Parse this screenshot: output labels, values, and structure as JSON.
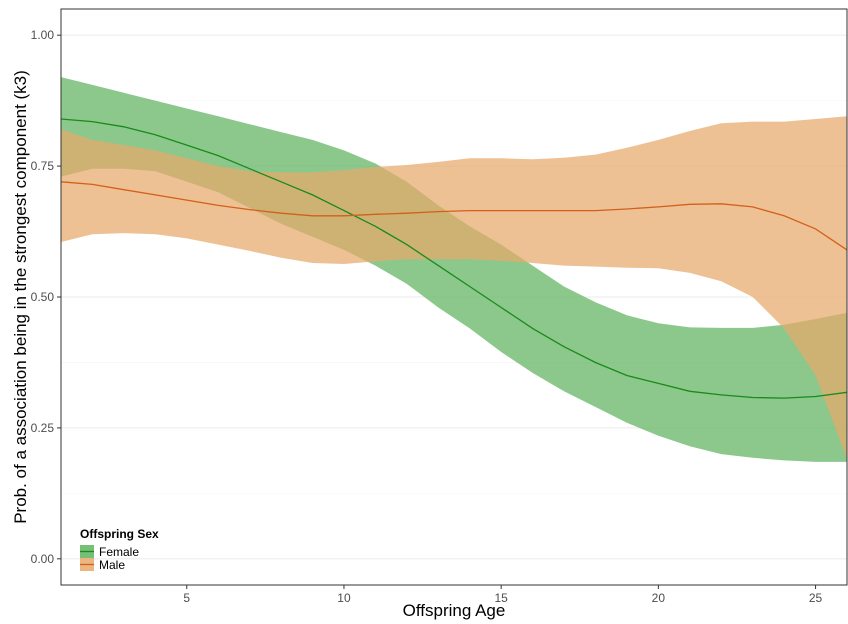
{
  "chart_data": {
    "type": "line",
    "xlabel": "Offspring Age",
    "ylabel": "Prob. of a association being in the strongest component (k3)",
    "xlim": [
      1,
      26
    ],
    "ylim": [
      -0.05,
      1.05
    ],
    "x_ticks": [
      5,
      10,
      15,
      20,
      25
    ],
    "x_tick_labels": [
      "5",
      "10",
      "15",
      "20",
      "25"
    ],
    "y_ticks": [
      0,
      0.25,
      0.5,
      0.75,
      1.0
    ],
    "y_tick_labels": [
      "0.00",
      "0.25",
      "0.50",
      "0.75",
      "1.00"
    ],
    "grid": true,
    "legend": {
      "title": "Offspring Sex",
      "placement": "bottom-left",
      "entries": [
        "Female",
        "Male"
      ]
    },
    "x": [
      1,
      2,
      3,
      4,
      5,
      6,
      7,
      8,
      9,
      10,
      11,
      12,
      13,
      14,
      15,
      16,
      17,
      18,
      19,
      20,
      21,
      22,
      23,
      24,
      25,
      26
    ],
    "series": [
      {
        "name": "Female",
        "color": "#1a8a1a",
        "fill": "#5fb35f",
        "values": [
          0.84,
          0.835,
          0.825,
          0.81,
          0.79,
          0.77,
          0.745,
          0.72,
          0.695,
          0.665,
          0.635,
          0.6,
          0.56,
          0.52,
          0.48,
          0.44,
          0.405,
          0.375,
          0.35,
          0.335,
          0.32,
          0.313,
          0.308,
          0.307,
          0.31,
          0.318
        ],
        "lower": [
          0.73,
          0.745,
          0.745,
          0.74,
          0.72,
          0.7,
          0.67,
          0.64,
          0.615,
          0.59,
          0.56,
          0.525,
          0.48,
          0.44,
          0.395,
          0.355,
          0.32,
          0.29,
          0.26,
          0.235,
          0.215,
          0.2,
          0.193,
          0.188,
          0.185,
          0.185
        ],
        "upper": [
          0.92,
          0.905,
          0.89,
          0.875,
          0.86,
          0.845,
          0.83,
          0.815,
          0.8,
          0.78,
          0.755,
          0.72,
          0.675,
          0.635,
          0.6,
          0.56,
          0.52,
          0.49,
          0.465,
          0.45,
          0.442,
          0.441,
          0.441,
          0.447,
          0.458,
          0.47
        ]
      },
      {
        "name": "Male",
        "color": "#d2601a",
        "fill": "#e8a96b",
        "values": [
          0.72,
          0.715,
          0.705,
          0.695,
          0.685,
          0.675,
          0.667,
          0.66,
          0.655,
          0.655,
          0.658,
          0.66,
          0.663,
          0.665,
          0.665,
          0.665,
          0.665,
          0.665,
          0.668,
          0.672,
          0.677,
          0.678,
          0.672,
          0.655,
          0.63,
          0.59
        ],
        "lower": [
          0.605,
          0.62,
          0.622,
          0.62,
          0.612,
          0.6,
          0.588,
          0.575,
          0.565,
          0.563,
          0.568,
          0.572,
          0.572,
          0.572,
          0.569,
          0.565,
          0.56,
          0.558,
          0.556,
          0.555,
          0.546,
          0.53,
          0.5,
          0.44,
          0.35,
          0.19
        ],
        "upper": [
          0.82,
          0.8,
          0.79,
          0.78,
          0.765,
          0.75,
          0.74,
          0.738,
          0.738,
          0.742,
          0.748,
          0.752,
          0.758,
          0.765,
          0.765,
          0.763,
          0.766,
          0.772,
          0.785,
          0.8,
          0.817,
          0.832,
          0.835,
          0.835,
          0.84,
          0.845
        ]
      }
    ]
  }
}
